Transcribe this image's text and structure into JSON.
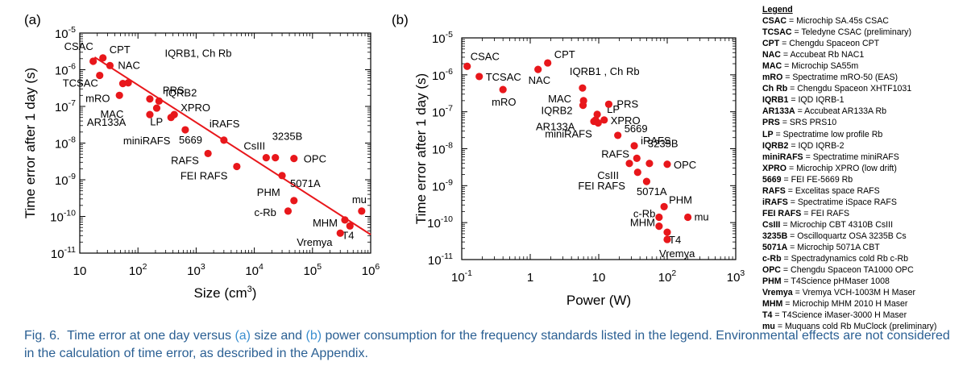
{
  "colors": {
    "marker": "#e8171b",
    "fit_line": "#e8171b",
    "caption": "#2a5f93",
    "caption_ref": "#3a8fd0"
  },
  "panels": [
    {
      "id": "a",
      "label": "(a)",
      "xlabel_main": "Size (cm",
      "xlabel_sup": "3",
      "xlabel_tail": ")",
      "ylabel": "Time error after 1 day (s)"
    },
    {
      "id": "b",
      "label": "(b)",
      "xlabel_main": "Power (W)",
      "xlabel_sup": "",
      "xlabel_tail": "",
      "ylabel": "Time error after 1 day (s)"
    }
  ],
  "chart_data": [
    {
      "type": "scatter",
      "panel": "(a)",
      "xlabel": "Size (cm3)",
      "ylabel": "Time error after 1 day (s)",
      "x_scale": "log",
      "y_scale": "log",
      "xlim": [
        10,
        1000000
      ],
      "ylim": [
        1e-11,
        1e-05
      ],
      "x_ticks": [
        10,
        100,
        1000,
        10000,
        100000,
        1000000
      ],
      "x_tick_labels": [
        [
          "10",
          ""
        ],
        [
          "10",
          "2"
        ],
        [
          "10",
          "3"
        ],
        [
          "10",
          "4"
        ],
        [
          "10",
          "5"
        ],
        [
          "10",
          "6"
        ]
      ],
      "y_ticks": [
        1e-11,
        1e-10,
        1e-09,
        1e-08,
        1e-07,
        1e-06,
        1e-05
      ],
      "y_tick_labels": [
        [
          "10",
          "-11"
        ],
        [
          "10",
          "-10"
        ],
        [
          "10",
          "-9"
        ],
        [
          "10",
          "-8"
        ],
        [
          "10",
          "-7"
        ],
        [
          "10",
          "-6"
        ],
        [
          "10",
          "-5"
        ]
      ],
      "fit_line": {
        "x": [
          18,
          1000000
        ],
        "y": [
          2.2e-06,
          3.2e-11
        ]
      },
      "points": [
        {
          "label": "CSAC",
          "x": 17,
          "y": 1.7e-06
        },
        {
          "label": "CPT",
          "x": 25,
          "y": 2.1e-06
        },
        {
          "label": "NAC",
          "x": 33,
          "y": 1.3e-06
        },
        {
          "label": "TCSAC",
          "x": 22,
          "y": 7e-07
        },
        {
          "label": "IQRB1, Ch Rb",
          "x": 55,
          "y": 4.2e-07
        },
        {
          "label": "",
          "x": 68,
          "y": 4.4e-07
        },
        {
          "label": "mRO",
          "x": 48,
          "y": 2e-07
        },
        {
          "label": "PRS",
          "x": 160,
          "y": 1.6e-07
        },
        {
          "label": "IQRB2",
          "x": 230,
          "y": 1.4e-07
        },
        {
          "label": "MAC",
          "x": 210,
          "y": 9e-08
        },
        {
          "label": "AR133A",
          "x": 160,
          "y": 6e-08
        },
        {
          "label": "LP",
          "x": 370,
          "y": 5e-08
        },
        {
          "label": "XPRO",
          "x": 420,
          "y": 6e-08
        },
        {
          "label": "miniRAFS",
          "x": 650,
          "y": 2.3e-08
        },
        {
          "label": "iRAFS",
          "x": 3000,
          "y": 1.2e-08
        },
        {
          "label": "RAFS",
          "x": 1600,
          "y": 5.2e-09
        },
        {
          "label": "CsIII",
          "x": 16000,
          "y": 4e-09
        },
        {
          "label": "3235B",
          "x": 23000,
          "y": 4e-09
        },
        {
          "label": "OPC",
          "x": 48000,
          "y": 3.8e-09
        },
        {
          "label": "FEI RAFS",
          "x": 5000,
          "y": 2.3e-09
        },
        {
          "label": "5071A",
          "x": 30000,
          "y": 1.3e-09
        },
        {
          "label": "PHM",
          "x": 48000,
          "y": 2.7e-10
        },
        {
          "label": "c-Rb",
          "x": 38000,
          "y": 1.4e-10
        },
        {
          "label": "mu",
          "x": 700000,
          "y": 1.4e-10
        },
        {
          "label": "MHM",
          "x": 360000,
          "y": 8e-11
        },
        {
          "label": "T4",
          "x": 440000,
          "y": 5.5e-11
        },
        {
          "label": "Vremya",
          "x": 300000,
          "y": 3.5e-11
        }
      ]
    },
    {
      "type": "scatter",
      "panel": "(b)",
      "xlabel": "Power (W)",
      "ylabel": "Time error after 1 day (s)",
      "x_scale": "log",
      "y_scale": "log",
      "xlim": [
        0.1,
        1000
      ],
      "ylim": [
        1e-11,
        1e-05
      ],
      "x_ticks": [
        0.1,
        1,
        10,
        100,
        1000
      ],
      "x_tick_labels": [
        [
          "10",
          "-1"
        ],
        [
          "1",
          ""
        ],
        [
          "10",
          ""
        ],
        [
          "10",
          "2"
        ],
        [
          "10",
          "3"
        ]
      ],
      "y_ticks": [
        1e-11,
        1e-10,
        1e-09,
        1e-08,
        1e-07,
        1e-06,
        1e-05
      ],
      "y_tick_labels": [
        [
          "10",
          "-11"
        ],
        [
          "10",
          "-10"
        ],
        [
          "10",
          "-9"
        ],
        [
          "10",
          "-8"
        ],
        [
          "10",
          "-7"
        ],
        [
          "10",
          "-6"
        ],
        [
          "10",
          "-5"
        ]
      ],
      "points": [
        {
          "label": "CSAC",
          "x": 0.12,
          "y": 1.7e-06
        },
        {
          "label": "TCSAC",
          "x": 0.18,
          "y": 9e-07
        },
        {
          "label": "mRO",
          "x": 0.4,
          "y": 4e-07
        },
        {
          "label": "CPT",
          "x": 1.8,
          "y": 2.1e-06
        },
        {
          "label": "NAC",
          "x": 1.3,
          "y": 1.4e-06
        },
        {
          "label": "IQRB1 , Ch Rb",
          "x": 5.8,
          "y": 4.4e-07
        },
        {
          "label": "MAC",
          "x": 6,
          "y": 2e-07
        },
        {
          "label": "IQRB2",
          "x": 5.9,
          "y": 1.5e-07
        },
        {
          "label": "LP",
          "x": 9.5,
          "y": 8.5e-08
        },
        {
          "label": "PRS",
          "x": 14,
          "y": 1.6e-07
        },
        {
          "label": "",
          "x": 9,
          "y": 6e-08
        },
        {
          "label": "AR133A",
          "x": 8.5,
          "y": 5.5e-08
        },
        {
          "label": "XPRO",
          "x": 12,
          "y": 6e-08
        },
        {
          "label": "miniRAFS",
          "x": 9.8,
          "y": 5e-08
        },
        {
          "label": "5669",
          "x": 19,
          "y": 2.3e-08
        },
        {
          "label": "iRAFS",
          "x": 33,
          "y": 1.2e-08
        },
        {
          "label": "RAFS",
          "x": 36,
          "y": 5.5e-09
        },
        {
          "label": "3235B",
          "x": 55,
          "y": 4e-09
        },
        {
          "label": "",
          "x": 28,
          "y": 4e-09
        },
        {
          "label": "OPC",
          "x": 100,
          "y": 3.8e-09
        },
        {
          "label": "CsIII",
          "x": 37,
          "y": 2.3e-09
        },
        {
          "label": "FEI RAFS",
          "x": 50,
          "y": 1.3e-09
        },
        {
          "label": "PHM",
          "x": 90,
          "y": 2.7e-10
        },
        {
          "label": "c-Rb",
          "x": 76,
          "y": 1.4e-10
        },
        {
          "label": "mu",
          "x": 200,
          "y": 1.4e-10
        },
        {
          "label": "MHM",
          "x": 76,
          "y": 8e-11
        },
        {
          "label": "T4",
          "x": 100,
          "y": 5.5e-11
        },
        {
          "label": "Vremya",
          "x": 100,
          "y": 3.5e-11
        }
      ]
    }
  ],
  "legend": {
    "title": "Legend",
    "entries": [
      {
        "abbr": "CSAC",
        "desc": " = Microchip SA.45s CSAC"
      },
      {
        "abbr": "TCSAC",
        "desc": " = Teledyne CSAC (preliminary)"
      },
      {
        "abbr": "CPT",
        "desc": " = Chengdu Spaceon CPT"
      },
      {
        "abbr": "NAC",
        "desc": " = Accubeat Rb NAC1"
      },
      {
        "abbr": "MAC",
        "desc": " = Microchip SA55m"
      },
      {
        "abbr": "mRO",
        "desc": " = Spectratime mRO-50 (EAS)"
      },
      {
        "abbr": "Ch Rb",
        "desc": " = Chengdu Spaceon XHTF1031"
      },
      {
        "abbr": "IQRB1",
        "desc": " = IQD IQRB-1"
      },
      {
        "abbr": "AR133A",
        "desc": " = Accubeat AR133A Rb"
      },
      {
        "abbr": "PRS",
        "desc": " = SRS PRS10"
      },
      {
        "abbr": "LP",
        "desc": " = Spectratime low profile Rb"
      },
      {
        "abbr": "IQRB2",
        "desc": " = IQD IQRB-2"
      },
      {
        "abbr": "miniRAFS",
        "desc": " = Spectratime miniRAFS"
      },
      {
        "abbr": "XPRO",
        "desc": " = Microchip XPRO (low drift)"
      },
      {
        "abbr": "5669",
        "desc": " = FEI FE-5669 Rb"
      },
      {
        "abbr": "RAFS",
        "desc": " = Excelitas space RAFS"
      },
      {
        "abbr": "iRAFS",
        "desc": " = Spectratime iSpace RAFS"
      },
      {
        "abbr": "FEI RAFS",
        "desc": " = FEI RAFS"
      },
      {
        "abbr": "CsIII",
        "desc": " = Microchip CBT 4310B CsIII"
      },
      {
        "abbr": "3235B",
        "desc": " = Oscilloquartz OSA 3235B Cs"
      },
      {
        "abbr": "5071A",
        "desc": " = Microchip 5071A CBT"
      },
      {
        "abbr": "c-Rb",
        "desc": " = Spectradynamics cold Rb c-Rb"
      },
      {
        "abbr": "OPC",
        "desc": " = Chengdu Spaceon TA1000 OPC"
      },
      {
        "abbr": "PHM",
        "desc": " = T4Science pHMaser 1008"
      },
      {
        "abbr": "Vremya",
        "desc": " = Vremya VCH-1003M H Maser"
      },
      {
        "abbr": "MHM",
        "desc": " = Microchip MHM 2010 H Maser"
      },
      {
        "abbr": "T4",
        "desc": " = T4Science iMaser-3000 H Maser"
      },
      {
        "abbr": "mu",
        "desc": " = Muquans cold Rb MuClock (preliminary)"
      }
    ]
  },
  "caption": {
    "fig_label": "Fig. 6.",
    "part1": "  Time error at one day versus ",
    "ref_a": "(a)",
    "part2": " size and ",
    "ref_b": "(b)",
    "part3": " power consumption for the frequency standards listed in the legend. Environmental effects are not considered in the calculation of time error, as described in the Appendix."
  }
}
